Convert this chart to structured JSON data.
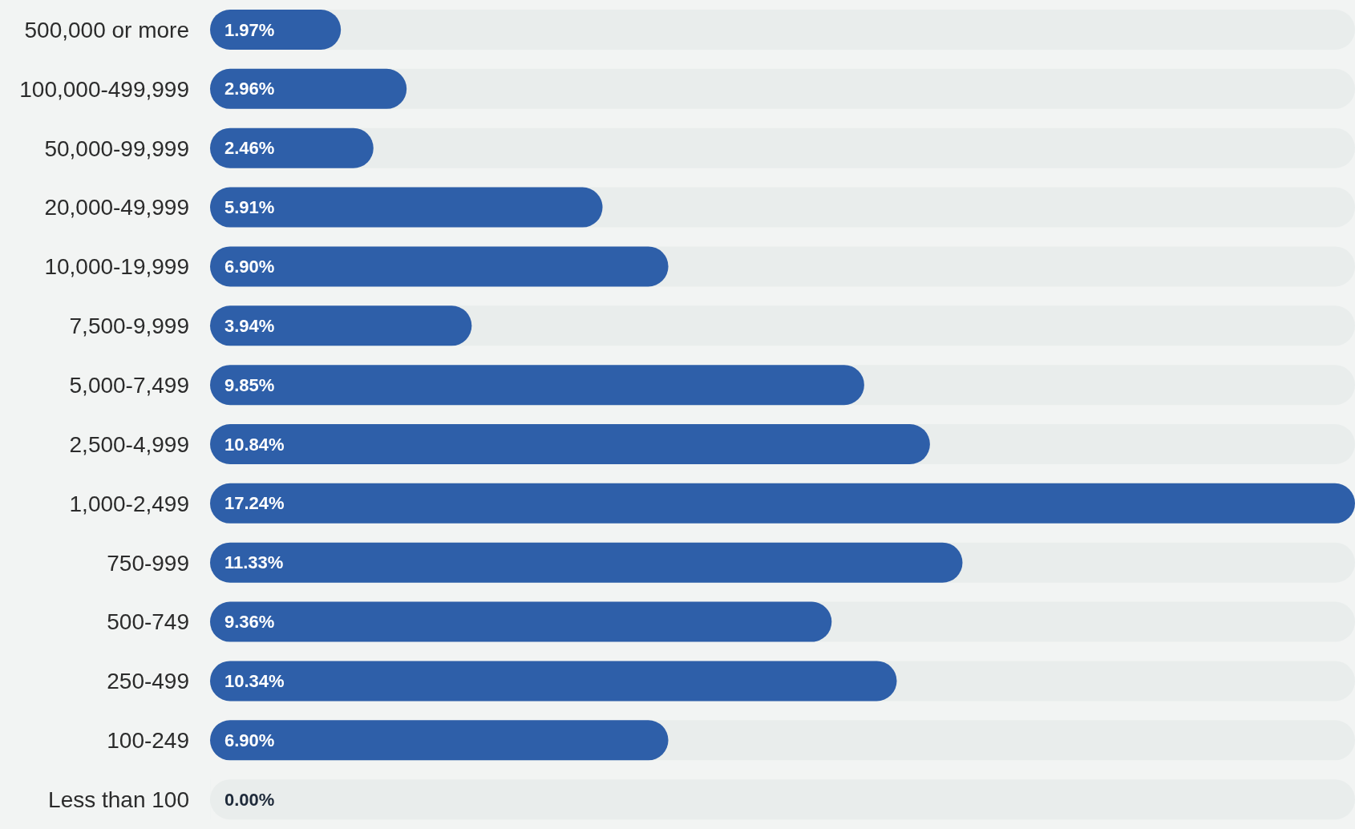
{
  "chart_data": {
    "type": "bar",
    "orientation": "horizontal",
    "categories": [
      "500,000 or more",
      "100,000-499,999",
      "50,000-99,999",
      "20,000-49,999",
      "10,000-19,999",
      "7,500-9,999",
      "5,000-7,499",
      "2,500-4,999",
      "1,000-2,499",
      "750-999",
      "500-749",
      "250-499",
      "100-249",
      "Less than 100"
    ],
    "values": [
      1.97,
      2.96,
      2.46,
      5.91,
      6.9,
      3.94,
      9.85,
      10.84,
      17.24,
      11.33,
      9.36,
      10.34,
      6.9,
      0
    ],
    "value_labels": [
      "1.97%",
      "2.96%",
      "2.46%",
      "5.91%",
      "6.90%",
      "3.94%",
      "9.85%",
      "10.84%",
      "17.24%",
      "11.33%",
      "9.36%",
      "10.34%",
      "6.90%",
      "0.00%"
    ],
    "color": "#2e5fa9"
  }
}
